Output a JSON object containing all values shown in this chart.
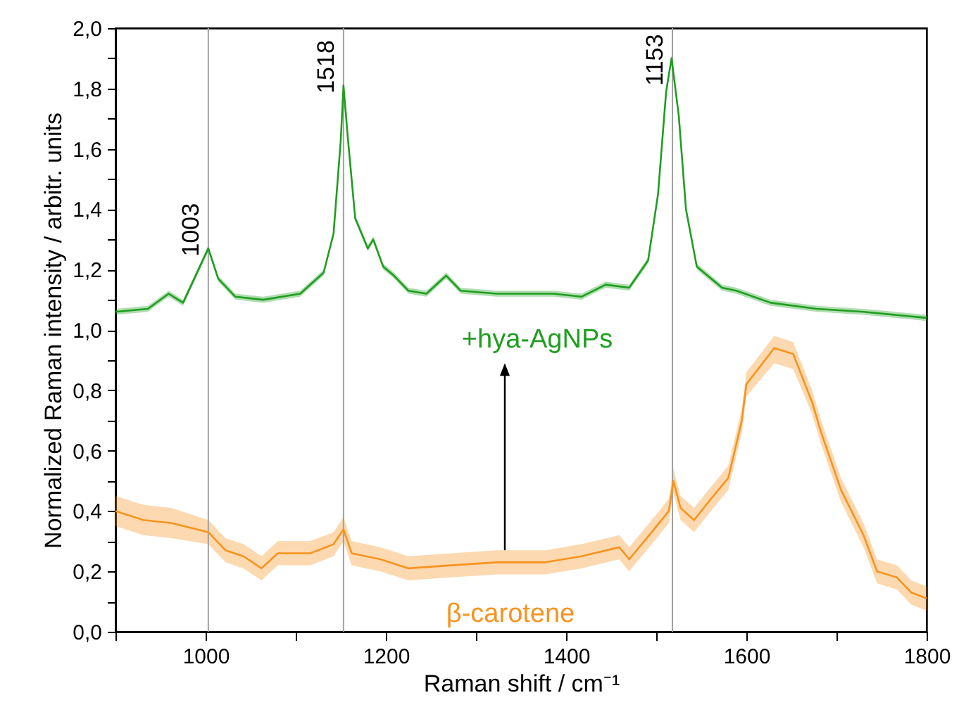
{
  "chart_data": {
    "type": "line",
    "xlabel": "Raman shift / cm⁻¹",
    "ylabel": "Normalized Raman intensity / arbitr. units",
    "xlim": [
      900,
      1800
    ],
    "ylim": [
      0,
      2
    ],
    "xticks": [
      {
        "value": 900,
        "label": null
      },
      1000,
      {
        "value": 1100,
        "label": null
      },
      1200,
      {
        "value": 1300,
        "label": null
      },
      1400,
      {
        "value": 1500,
        "label": null
      },
      1600,
      {
        "value": 1700,
        "label": null
      },
      1800
    ],
    "yticks": [
      {
        "value": 0,
        "label": "0,0"
      },
      {
        "value": 0.1,
        "label": null
      },
      {
        "value": 0.2,
        "label": "0,2"
      },
      {
        "value": 0.3,
        "label": null
      },
      {
        "value": 0.4,
        "label": "0,4"
      },
      {
        "value": 0.5,
        "label": null
      },
      {
        "value": 0.6,
        "label": "0,6"
      },
      {
        "value": 0.7,
        "label": null
      },
      {
        "value": 0.8,
        "label": "0,8"
      },
      {
        "value": 0.9,
        "label": null
      },
      {
        "value": 1,
        "label": "1,0"
      },
      {
        "value": 1.1,
        "label": null
      },
      {
        "value": 1.2,
        "label": "1,2"
      },
      {
        "value": 1.3,
        "label": null
      },
      {
        "value": 1.4,
        "label": "1,4"
      },
      {
        "value": 1.5,
        "label": null
      },
      {
        "value": 1.6,
        "label": "1,6"
      },
      {
        "value": 1.7,
        "label": null
      },
      {
        "value": 1.8,
        "label": "1,8"
      },
      {
        "value": 1.9,
        "label": null
      },
      {
        "value": 2,
        "label": "2,0"
      }
    ],
    "series": [
      {
        "name": "+hya-AgNPs",
        "color": "#1f9e1f",
        "x": [
          900,
          936,
          959,
          975,
          1003,
          1014,
          1033,
          1064,
          1105,
          1131,
          1142,
          1150,
          1153,
          1158,
          1166,
          1180,
          1186,
          1197,
          1209,
          1225,
          1245,
          1267,
          1283,
          1323,
          1350,
          1386,
          1417,
          1444,
          1470,
          1491,
          1502,
          1511,
          1517,
          1525,
          1533,
          1545,
          1573,
          1589,
          1627,
          1678,
          1730,
          1800
        ],
        "values": [
          1.06,
          1.07,
          1.12,
          1.09,
          1.27,
          1.17,
          1.11,
          1.1,
          1.12,
          1.19,
          1.32,
          1.63,
          1.81,
          1.63,
          1.37,
          1.27,
          1.3,
          1.21,
          1.18,
          1.13,
          1.12,
          1.18,
          1.13,
          1.12,
          1.12,
          1.12,
          1.11,
          1.15,
          1.14,
          1.23,
          1.45,
          1.79,
          1.9,
          1.71,
          1.4,
          1.21,
          1.14,
          1.13,
          1.09,
          1.07,
          1.06,
          1.04
        ],
        "lower": [
          1.05,
          1.06,
          1.11,
          1.08,
          1.26,
          1.16,
          1.1,
          1.09,
          1.11,
          1.18,
          1.31,
          1.62,
          1.8,
          1.62,
          1.36,
          1.26,
          1.29,
          1.2,
          1.17,
          1.12,
          1.11,
          1.17,
          1.12,
          1.11,
          1.11,
          1.11,
          1.1,
          1.14,
          1.13,
          1.22,
          1.44,
          1.78,
          1.89,
          1.7,
          1.39,
          1.2,
          1.13,
          1.12,
          1.08,
          1.06,
          1.05,
          1.03
        ],
        "upper": [
          1.07,
          1.08,
          1.13,
          1.1,
          1.28,
          1.18,
          1.12,
          1.11,
          1.13,
          1.2,
          1.33,
          1.64,
          1.82,
          1.64,
          1.38,
          1.28,
          1.31,
          1.22,
          1.19,
          1.14,
          1.13,
          1.19,
          1.14,
          1.13,
          1.13,
          1.13,
          1.12,
          1.16,
          1.15,
          1.24,
          1.46,
          1.8,
          1.91,
          1.72,
          1.41,
          1.22,
          1.15,
          1.14,
          1.1,
          1.08,
          1.07,
          1.05
        ]
      },
      {
        "name": "β-carotene",
        "color": "#f7931e",
        "x": [
          900,
          931,
          962,
          1003,
          1022,
          1042,
          1062,
          1080,
          1116,
          1142,
          1153,
          1162,
          1194,
          1225,
          1272,
          1323,
          1377,
          1417,
          1459,
          1470,
          1495,
          1514,
          1519,
          1527,
          1542,
          1558,
          1580,
          1595,
          1600,
          1631,
          1652,
          1673,
          1683,
          1705,
          1730,
          1745,
          1767,
          1783,
          1800
        ],
        "values": [
          0.4,
          0.37,
          0.36,
          0.33,
          0.27,
          0.25,
          0.21,
          0.26,
          0.26,
          0.29,
          0.34,
          0.26,
          0.24,
          0.21,
          0.22,
          0.23,
          0.23,
          0.25,
          0.28,
          0.24,
          0.33,
          0.4,
          0.5,
          0.41,
          0.37,
          0.43,
          0.51,
          0.7,
          0.82,
          0.94,
          0.92,
          0.76,
          0.66,
          0.47,
          0.32,
          0.2,
          0.18,
          0.13,
          0.11
        ],
        "lower": [
          0.35,
          0.32,
          0.31,
          0.29,
          0.23,
          0.21,
          0.17,
          0.22,
          0.22,
          0.25,
          0.3,
          0.22,
          0.2,
          0.17,
          0.18,
          0.19,
          0.19,
          0.21,
          0.24,
          0.2,
          0.29,
          0.36,
          0.46,
          0.37,
          0.33,
          0.39,
          0.47,
          0.66,
          0.78,
          0.89,
          0.87,
          0.72,
          0.62,
          0.43,
          0.28,
          0.16,
          0.14,
          0.09,
          0.07
        ],
        "upper": [
          0.45,
          0.42,
          0.41,
          0.37,
          0.31,
          0.29,
          0.25,
          0.3,
          0.3,
          0.33,
          0.38,
          0.3,
          0.28,
          0.25,
          0.26,
          0.27,
          0.27,
          0.29,
          0.32,
          0.28,
          0.37,
          0.44,
          0.54,
          0.45,
          0.41,
          0.47,
          0.55,
          0.74,
          0.86,
          0.98,
          0.96,
          0.8,
          0.7,
          0.51,
          0.36,
          0.24,
          0.22,
          0.17,
          0.15
        ]
      }
    ],
    "ref_lines": [
      {
        "axis": "x",
        "value": 1003,
        "color": "#a0a0a0"
      },
      {
        "axis": "x",
        "value": 1153,
        "color": "#a0a0a0"
      },
      {
        "axis": "x",
        "value": 1518,
        "color": "#a0a0a0"
      }
    ],
    "annotations": [
      {
        "text": "1003",
        "x": 1003,
        "y": 1.27
      },
      {
        "text": "1518",
        "x": 1153,
        "y": 1.81
      },
      {
        "text": "1153",
        "x": 1518,
        "y": 1.9
      }
    ]
  }
}
